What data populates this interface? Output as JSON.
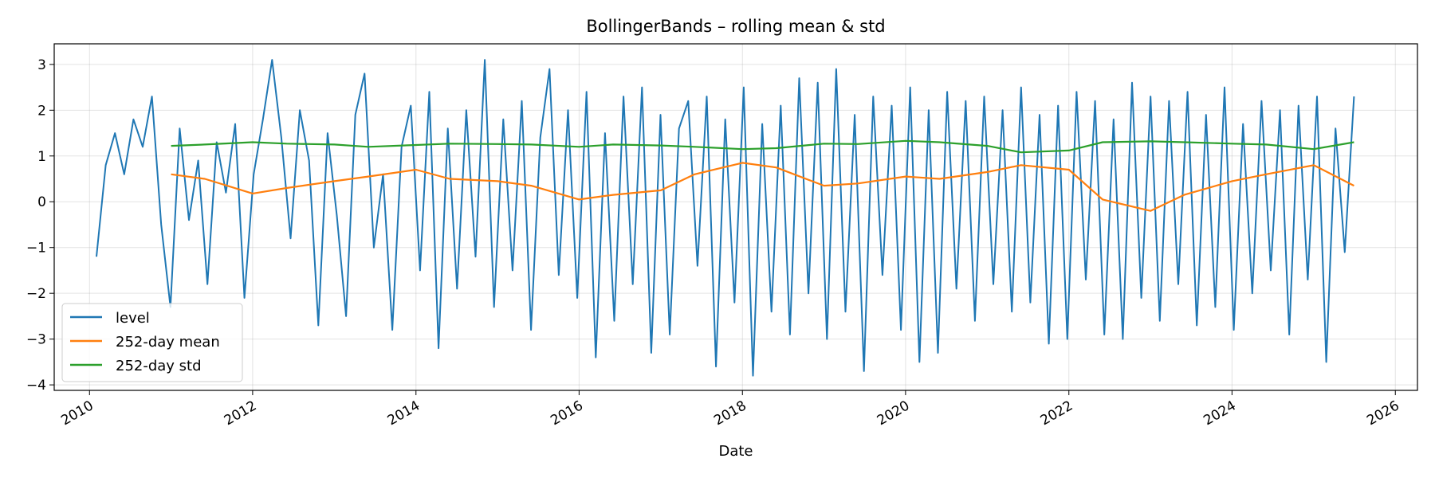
{
  "chart_data": {
    "type": "line",
    "title": "BollingerBands – rolling mean & std",
    "xlabel": "Date",
    "ylabel": "",
    "xlim": [
      "2009-07-27",
      "2026-04-10"
    ],
    "ylim": [
      -4.12,
      3.45
    ],
    "x_ticks": [
      "2010",
      "2012",
      "2014",
      "2016",
      "2018",
      "2020",
      "2022",
      "2024",
      "2026"
    ],
    "y_ticks": [
      -4,
      -3,
      -2,
      -1,
      0,
      1,
      2,
      3
    ],
    "grid": true,
    "legend_position": "lower-left",
    "series": [
      {
        "name": "level",
        "color": "#1f77b4",
        "x_start": "2010-02-01",
        "x_end": "2025-06-30",
        "values": [
          -1.2,
          0.8,
          1.5,
          0.6,
          1.8,
          1.2,
          2.3,
          -0.5,
          -2.3,
          1.6,
          -0.4,
          0.9,
          -1.8,
          1.3,
          0.2,
          1.7,
          -2.1,
          0.6,
          1.8,
          3.1,
          1.4,
          -0.8,
          2.0,
          0.9,
          -2.7,
          1.5,
          -0.3,
          -2.5,
          1.9,
          2.8,
          -1.0,
          0.6,
          -2.8,
          1.2,
          2.1,
          -1.5,
          2.4,
          -3.2,
          1.6,
          -1.9,
          2.0,
          -1.2,
          3.1,
          -2.3,
          1.8,
          -1.5,
          2.2,
          -2.8,
          1.4,
          2.9,
          -1.6,
          2.0,
          -2.1,
          2.4,
          -3.4,
          1.5,
          -2.6,
          2.3,
          -1.8,
          2.5,
          -3.3,
          1.9,
          -2.9,
          1.6,
          2.2,
          -1.4,
          2.3,
          -3.6,
          1.8,
          -2.2,
          2.5,
          -3.8,
          1.7,
          -2.4,
          2.1,
          -2.9,
          2.7,
          -2.0,
          2.6,
          -3.0,
          2.9,
          -2.4,
          1.9,
          -3.7,
          2.3,
          -1.6,
          2.1,
          -2.8,
          2.5,
          -3.5,
          2.0,
          -3.3,
          2.4,
          -1.9,
          2.2,
          -2.6,
          2.3,
          -1.8,
          2.0,
          -2.4,
          2.5,
          -2.2,
          1.9,
          -3.1,
          2.1,
          -3.0,
          2.4,
          -1.7,
          2.2,
          -2.9,
          1.8,
          -3.0,
          2.6,
          -2.1,
          2.3,
          -2.6,
          2.2,
          -1.8,
          2.4,
          -2.7,
          1.9,
          -2.3,
          2.5,
          -2.8,
          1.7,
          -2.0,
          2.2,
          -1.5,
          2.0,
          -2.9,
          2.1,
          -1.7,
          2.3,
          -3.5,
          1.6,
          -1.1,
          2.3
        ]
      },
      {
        "name": "252-day mean",
        "color": "#ff7f0e",
        "x_start": "2011-01-01",
        "x_end": "2025-06-30",
        "x": [
          "2011-01-01",
          "2011-06-01",
          "2012-01-01",
          "2012-06-01",
          "2013-01-01",
          "2013-06-01",
          "2014-01-01",
          "2014-06-01",
          "2015-01-01",
          "2015-06-01",
          "2016-01-01",
          "2016-06-01",
          "2017-01-01",
          "2017-06-01",
          "2018-01-01",
          "2018-06-01",
          "2019-01-01",
          "2019-06-01",
          "2020-01-01",
          "2020-06-01",
          "2021-01-01",
          "2021-06-01",
          "2022-01-01",
          "2022-06-01",
          "2023-01-01",
          "2023-06-01",
          "2024-01-01",
          "2024-06-01",
          "2025-01-01",
          "2025-06-30"
        ],
        "values": [
          0.6,
          0.5,
          0.18,
          0.3,
          0.45,
          0.55,
          0.7,
          0.5,
          0.45,
          0.35,
          0.05,
          0.15,
          0.25,
          0.6,
          0.85,
          0.75,
          0.35,
          0.4,
          0.55,
          0.5,
          0.65,
          0.8,
          0.7,
          0.05,
          -0.2,
          0.15,
          0.45,
          0.6,
          0.8,
          0.35
        ]
      },
      {
        "name": "252-day std",
        "color": "#2ca02c",
        "x_start": "2011-01-01",
        "x_end": "2025-06-30",
        "x": [
          "2011-01-01",
          "2011-06-01",
          "2012-01-01",
          "2012-06-01",
          "2013-01-01",
          "2013-06-01",
          "2014-01-01",
          "2014-06-01",
          "2015-01-01",
          "2015-06-01",
          "2016-01-01",
          "2016-06-01",
          "2017-01-01",
          "2017-06-01",
          "2018-01-01",
          "2018-06-01",
          "2019-01-01",
          "2019-06-01",
          "2020-01-01",
          "2020-06-01",
          "2021-01-01",
          "2021-06-01",
          "2022-01-01",
          "2022-06-01",
          "2023-01-01",
          "2023-06-01",
          "2024-01-01",
          "2024-06-01",
          "2025-01-01",
          "2025-06-30"
        ],
        "values": [
          1.22,
          1.25,
          1.3,
          1.27,
          1.25,
          1.2,
          1.24,
          1.27,
          1.26,
          1.25,
          1.2,
          1.25,
          1.23,
          1.2,
          1.15,
          1.17,
          1.27,
          1.26,
          1.33,
          1.3,
          1.22,
          1.08,
          1.12,
          1.3,
          1.32,
          1.3,
          1.27,
          1.25,
          1.15,
          1.3
        ]
      }
    ]
  }
}
